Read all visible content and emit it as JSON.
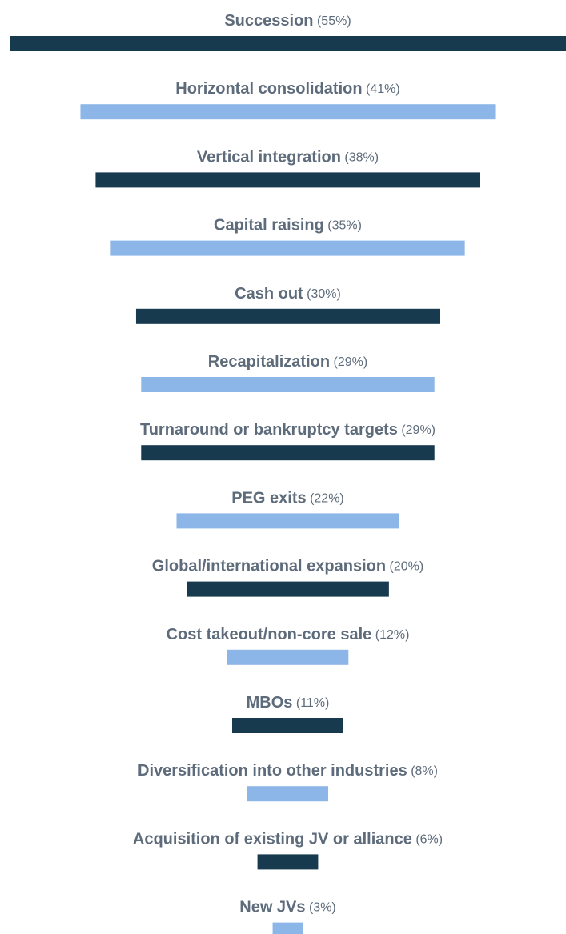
{
  "chart_data": {
    "type": "centered-bar",
    "categories": [
      "Succession",
      "Horizontal consolidation",
      "Vertical integration",
      "Capital raising",
      "Cash out",
      "Recapitalization",
      "Turnaround or bankruptcy targets",
      "PEG exits",
      "Global/international expansion",
      "Cost takeout/non-core sale",
      "MBOs",
      "Diversification into other industries",
      "Acquisition of existing JV or alliance",
      "New JVs"
    ],
    "values": [
      55,
      41,
      38,
      35,
      30,
      29,
      29,
      22,
      20,
      12,
      11,
      8,
      6,
      3
    ],
    "value_labels": [
      "(55%)",
      "(41%)",
      "(38%)",
      "(35%)",
      "(30%)",
      "(29%)",
      "(29%)",
      "(22%)",
      "(20%)",
      "(12%)",
      "(11%)",
      "(8%)",
      "(6%)",
      "(3%)"
    ],
    "colors": [
      "#173a4e",
      "#8db6e8",
      "#173a4e",
      "#8db6e8",
      "#173a4e",
      "#8db6e8",
      "#173a4e",
      "#8db6e8",
      "#173a4e",
      "#8db6e8",
      "#173a4e",
      "#8db6e8",
      "#173a4e",
      "#8db6e8"
    ]
  }
}
